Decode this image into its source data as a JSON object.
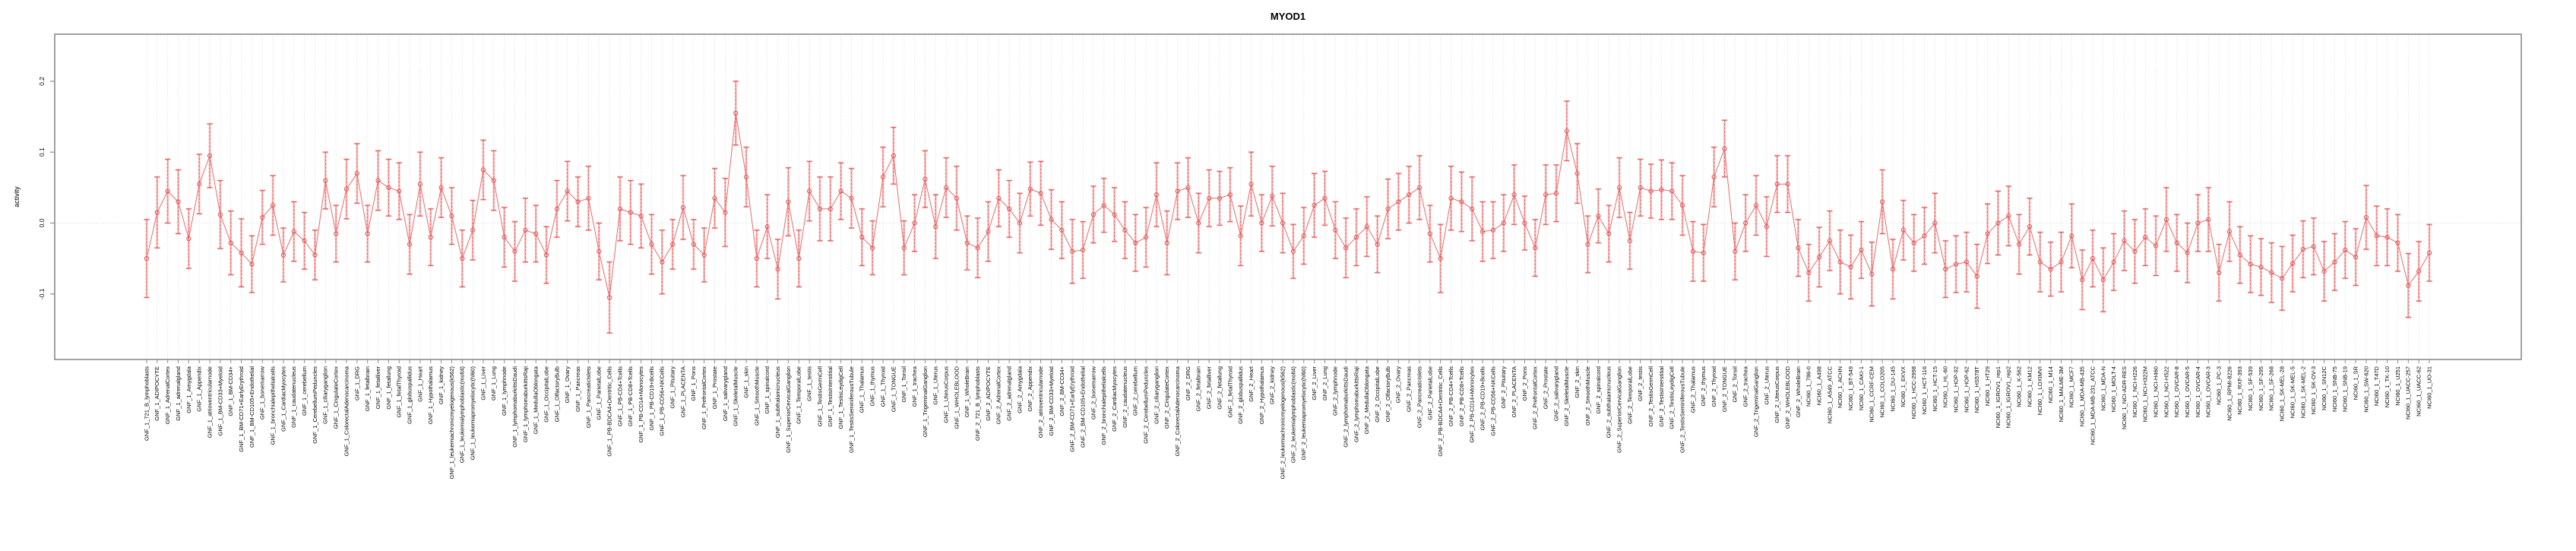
{
  "chart_data": {
    "type": "line",
    "subtype": "points-with-error-bars-connected",
    "title": "MYOD1",
    "xlabel": "",
    "ylabel": "activity",
    "y_ticks": [
      0.2,
      0.1,
      0.0,
      -0.1
    ],
    "y_tick_labels": [
      "0.2",
      "0.1",
      "0.0",
      "-0.1"
    ],
    "ylim": [
      -0.192,
      0.266
    ],
    "legend": "none",
    "grid": {
      "vertical_per_category": true,
      "horizontal_at_zero": true
    },
    "colors": {
      "line": "#ea6a6a",
      "marker": "#e05d5d",
      "errorbar_pale": "#f7b5b5",
      "errorbar_dashed": "#e05d5d",
      "grid": "#d9d9d9",
      "axis": "#8c8c8c",
      "title": "#000000",
      "background": "#ffffff"
    },
    "categories": [
      "GNF_1_721_B_lymphoblasts",
      "GNF_1_ADIPOCYTE",
      "GNF_1_AdrenalCortex",
      "GNF_1_adrenalgland",
      "GNF_1_Amygdala",
      "GNF_1_Appendix",
      "GNF_1_atrioventricularnode",
      "GNF_1_BM-CD33+Myeloid",
      "GNF_1_BM-CD34+",
      "GNF_1_BM-CD71+EarlyErythroid",
      "GNF_1_BM-CD105+Endothelial",
      "GNF_1_bonemarrow",
      "GNF_1_bronchialepithelialcells",
      "GNF_1_CardiacMyocytes",
      "GNF_1_caudatenucleus",
      "GNF_1_cerebellum",
      "GNF_1_CerebellumPeduncles",
      "GNF_1_ciliaryganglion",
      "GNF_1_CingulateCortex",
      "GNF_1_ColorectalAdenocarcinoma",
      "GNF_1_DRG",
      "GNF_1_fetalbrain",
      "GNF_1_fetalliver",
      "GNF_1_fetallung",
      "GNF_1_fetalThyroid",
      "GNF_1_globuspallidus",
      "GNF_1_Heart",
      "GNF_1_Hypothalamus",
      "GNF_1_kidney",
      "GNF_1_leukemiachronicmyelogenous(k562)",
      "GNF_1_leukemialymphoblastic(molt4)",
      "GNF_1_leukemiapromyelocytic(hl60)",
      "GNF_1_Liver",
      "GNF_1_Lung",
      "GNF_1_lymphnode",
      "GNF_1_lymphomaburkittsDaudi",
      "GNF_1_lymphomaburkittsRaji",
      "GNF_1_MedullaOblongata",
      "GNF_1_OccipitalLobe",
      "GNF_1_OlfactoryBulb",
      "GNF_1_Ovary",
      "GNF_1_Pancreas",
      "GNF_1_PancreaticIslets",
      "GNF_1_ParietalLobe",
      "GNF_1_PB-BDCA4+Dentritic_Cells",
      "GNF_1_PB-CD4+Tcells",
      "GNF_1_PB-CD8+Tcells",
      "GNF_1_PB-CD14+Monocytes",
      "GNF_1_PB-CD19+Bcells",
      "GNF_1_PB-CD56+NKCells",
      "GNF_1_Pituitary",
      "GNF_1_PLACENTA",
      "GNF_1_Pons",
      "GNF_1_PrefrontalCortex",
      "GNF_1_Prostate",
      "GNF_1_salivarygland",
      "GNF_1_SkeletalMuscle",
      "GNF_1_skin",
      "GNF_1_SmoothMuscle",
      "GNF_1_spinalcord",
      "GNF_1_subthalamicnucleus",
      "GNF_1_SuperiorCervicalGanglion",
      "GNF_1_TemporalLobe",
      "GNF_1_testis",
      "GNF_1_TestisGermCell",
      "GNF_1_TestisInterstitial",
      "GNF_1_TestisLeydigCell",
      "GNF_1_TestisSeminiferousTubule",
      "GNF_1_Thalamus",
      "GNF_1_thymus",
      "GNF_1_Thyroid",
      "GNF_1_TONGUE",
      "GNF_1_Tonsil",
      "GNF_1_trachea",
      "GNF_1_TrigeminalGanglion",
      "GNF_1_Uterus",
      "GNF_1_UterusCorpus",
      "GNF_1_WHOLEBLOOD",
      "GNF_1_WholeBrain",
      "GNF_2_721_B_lymphoblasts",
      "GNF_2_ADIPOCYTE",
      "GNF_2_AdrenalCortex",
      "GNF_2_adrenalgland",
      "GNF_2_Amygdala",
      "GNF_2_Appendix",
      "GNF_2_atrioventricularnode",
      "GNF_2_BM-CD33+Myeloid",
      "GNF_2_BM-CD34+",
      "GNF_2_BM-CD71+EarlyErythroid",
      "GNF_2_BM-CD105+Endothelial",
      "GNF_2_bonemarrow",
      "GNF_2_bronchialepithelialcells",
      "GNF_2_CardiacMyocytes",
      "GNF_2_caudatenucleus",
      "GNF_2_cerebellum",
      "GNF_2_CerebellumPeduncles",
      "GNF_2_ciliaryganglion",
      "GNF_2_CingulateCortex",
      "GNF_2_ColorectalAdenocarcinoma",
      "GNF_2_DRG",
      "GNF_2_fetalbrain",
      "GNF_2_fetalliver",
      "GNF_2_fetallung",
      "GNF_2_fetalThyroid",
      "GNF_2_globuspallidus",
      "GNF_2_Heart",
      "GNF_2_Hypothalamus",
      "GNF_2_kidney",
      "GNF_2_leukemiachronicmyelogenous(k562)",
      "GNF_2_leukemialymphoblastic(molt4)",
      "GNF_2_leukemiapromyelocytic(hl60)",
      "GNF_2_Liver",
      "GNF_2_Lung",
      "GNF_2_lymphnode",
      "GNF_2_lymphomaburkittsDaudi",
      "GNF_2_lymphomaburkittsRaji",
      "GNF_2_MedullaOblongata",
      "GNF_2_OccipitalLobe",
      "GNF_2_OlfactoryBulb",
      "GNF_2_Ovary",
      "GNF_2_Pancreas",
      "GNF_2_PancreaticIslets",
      "GNF_2_ParietalLobe",
      "GNF_2_PB-BDCA4+Dentritic_Cells",
      "GNF_2_PB-CD4+Tcells",
      "GNF_2_PB-CD8+Tcells",
      "GNF_2_PB-CD14+Monocytes",
      "GNF_2_PB-CD19+Bcells",
      "GNF_2_PB-CD56+NKCells",
      "GNF_2_Pituitary",
      "GNF_2_PLACENTA",
      "GNF_2_Pons",
      "GNF_2_PrefrontalCortex",
      "GNF_2_Prostate",
      "GNF_2_salivarygland",
      "GNF_2_SkeletalMuscle",
      "GNF_2_skin",
      "GNF_2_SmoothMuscle",
      "GNF_2_spinalcord",
      "GNF_2_subthalamicnucleus",
      "GNF_2_SuperiorCervicalGanglion",
      "GNF_2_TemporalLobe",
      "GNF_2_testis",
      "GNF_2_TestisGermCell",
      "GNF_2_TestisInterstitial",
      "GNF_2_TestisLeydigCell",
      "GNF_2_TestisSeminiferousTubule",
      "GNF_2_Thalamus",
      "GNF_2_thymus",
      "GNF_2_Thyroid",
      "GNF_2_TONGUE",
      "GNF_2_Tonsil",
      "GNF_2_trachea",
      "GNF_2_TrigeminalGanglion",
      "GNF_2_Uterus",
      "GNF_2_UterusCorpus",
      "GNF_2_WHOLEBLOOD",
      "GNF_2_WholeBrain",
      "NCI60_1_786-0",
      "NCI60_1_A498",
      "NCI60_1_A549_ATCC",
      "NCI60_1_ACHN",
      "NCI60_1_BT-549",
      "NCI60_1_CAKI-1",
      "NCI60_1_CCRF-CEM",
      "NCI60_1_COLO205",
      "NCI60_1_DU-145",
      "NCI60_1_EKVX",
      "NCI60_1_HCC-2998",
      "NCI60_1_HCT-116",
      "NCI60_1_HCT-15",
      "NCI60_1_HL-60",
      "NCI60_1_HOP-92",
      "NCI60_1_HOP-62",
      "NCI60_1_HS578T",
      "NCI60_1_HT29",
      "NCI60_1_IGROV1_rep1",
      "NCI60_1_IGROV1_rep2",
      "NCI60_1_K-562",
      "NCI60_1_KM12",
      "NCI60_1_LOXIMVI",
      "NCI60_1_M14",
      "NCI60_1_MALME-3M",
      "NCI60_1_MCF7",
      "NCI60_1_MDA-MB-435",
      "NCI60_1_MDA-MB-231_ATCC",
      "NCI60_1_MDA-N",
      "NCI60_1_MOLT-4",
      "NCI60_1_NCI-ADR-RES",
      "NCI60_1_NCI-H226",
      "NCI60_1_NCI-H322M",
      "NCI60_1_NCI-H460",
      "NCI60_1_NCI-H522",
      "NCI60_1_OVCAR-8",
      "NCI60_1_OVCAR-5",
      "NCI60_1_OVCAR-4",
      "NCI60_1_OVCAR-3",
      "NCI60_1_PC-3",
      "NCI60_1_RPMI-8226",
      "NCI60_1_RXF-393",
      "NCI60_1_SF-539",
      "NCI60_1_SF-295",
      "NCI60_1_SF-268",
      "NCI60_1_SK-MEL-28",
      "NCI60_1_SK-MEL-5",
      "NCI60_1_SK-MEL-2",
      "NCI60_1_SK-OV-3",
      "NCI60_1_SN12C",
      "NCI60_1_SNB-75",
      "NCI60_1_SNB-19",
      "NCI60_1_SR",
      "NCI60_1_SW-620",
      "NCI60_1_T47D",
      "NCI60_1_TK-10",
      "NCI60_1_U251",
      "NCI60_1_UACC-257",
      "NCI60_1_UACC-62",
      "NCI60_1_UO-31"
    ],
    "values": [
      -0.05,
      0.015,
      0.045,
      0.03,
      -0.022,
      0.055,
      0.095,
      0.012,
      -0.028,
      -0.042,
      -0.058,
      0.008,
      0.025,
      -0.045,
      -0.012,
      -0.025,
      -0.045,
      0.06,
      -0.015,
      0.048,
      0.07,
      -0.015,
      0.06,
      0.05,
      0.045,
      -0.03,
      0.055,
      -0.02,
      0.05,
      0.01,
      -0.05,
      -0.01,
      0.075,
      0.06,
      -0.02,
      -0.04,
      -0.01,
      -0.015,
      -0.045,
      0.02,
      0.045,
      0.03,
      0.035,
      -0.04,
      -0.105,
      0.02,
      0.015,
      0.01,
      -0.03,
      -0.055,
      -0.03,
      0.022,
      -0.03,
      -0.045,
      0.035,
      0.015,
      0.155,
      0.065,
      -0.05,
      -0.005,
      -0.065,
      0.03,
      -0.05,
      0.045,
      0.02,
      0.02,
      0.045,
      0.035,
      -0.02,
      -0.035,
      0.065,
      0.095,
      -0.035,
      0.0,
      0.062,
      -0.005,
      0.05,
      0.035,
      -0.028,
      -0.035,
      -0.012,
      0.035,
      0.02,
      0.0,
      0.048,
      0.042,
      0.005,
      -0.01,
      -0.04,
      -0.038,
      0.012,
      0.025,
      0.012,
      -0.01,
      -0.028,
      -0.02,
      0.04,
      -0.028,
      0.045,
      0.05,
      0.0,
      0.035,
      0.035,
      0.04,
      -0.018,
      0.055,
      0.0,
      0.038,
      0.0,
      -0.04,
      -0.018,
      0.025,
      0.035,
      -0.01,
      -0.035,
      -0.02,
      -0.005,
      -0.03,
      0.02,
      0.03,
      0.04,
      0.05,
      -0.015,
      -0.05,
      0.035,
      0.03,
      0.02,
      -0.012,
      -0.01,
      0.0,
      0.04,
      0.0,
      -0.035,
      0.04,
      0.042,
      0.13,
      0.07,
      -0.03,
      0.01,
      -0.015,
      0.05,
      -0.025,
      0.05,
      0.045,
      0.047,
      0.045,
      0.025,
      -0.04,
      -0.042,
      0.065,
      0.105,
      -0.04,
      0.0,
      0.025,
      -0.005,
      0.055,
      0.055,
      -0.035,
      -0.07,
      -0.048,
      -0.025,
      -0.055,
      -0.062,
      -0.038,
      -0.072,
      0.03,
      -0.065,
      -0.01,
      -0.028,
      -0.018,
      0.0,
      -0.065,
      -0.058,
      -0.055,
      -0.075,
      -0.015,
      0.0,
      0.01,
      -0.03,
      -0.005,
      -0.055,
      -0.065,
      -0.055,
      -0.018,
      -0.08,
      -0.05,
      -0.08,
      -0.055,
      -0.025,
      -0.04,
      -0.02,
      -0.032,
      0.005,
      -0.028,
      -0.042,
      0.0,
      0.005,
      -0.07,
      -0.012,
      -0.045,
      -0.058,
      -0.062,
      -0.07,
      -0.078,
      -0.057,
      -0.037,
      -0.033,
      -0.068,
      -0.055,
      -0.038,
      -0.048,
      0.008,
      -0.018,
      -0.02,
      -0.028,
      -0.088,
      -0.068,
      -0.042
    ],
    "errors": [
      0.055,
      0.05,
      0.045,
      0.045,
      0.042,
      0.042,
      0.045,
      0.048,
      0.045,
      0.048,
      0.04,
      0.038,
      0.042,
      0.038,
      0.042,
      0.04,
      0.035,
      0.04,
      0.04,
      0.042,
      0.042,
      0.04,
      0.042,
      0.04,
      0.04,
      0.042,
      0.045,
      0.04,
      0.042,
      0.04,
      0.04,
      0.042,
      0.042,
      0.042,
      0.042,
      0.042,
      0.045,
      0.04,
      0.04,
      0.04,
      0.042,
      0.035,
      0.045,
      0.04,
      0.05,
      0.045,
      0.045,
      0.045,
      0.042,
      0.045,
      0.035,
      0.045,
      0.035,
      0.038,
      0.042,
      0.048,
      0.045,
      0.042,
      0.04,
      0.045,
      0.042,
      0.048,
      0.04,
      0.042,
      0.045,
      0.045,
      0.04,
      0.042,
      0.04,
      0.038,
      0.042,
      0.04,
      0.038,
      0.04,
      0.04,
      0.045,
      0.042,
      0.045,
      0.038,
      0.042,
      0.042,
      0.04,
      0.04,
      0.042,
      0.038,
      0.045,
      0.042,
      0.04,
      0.045,
      0.04,
      0.04,
      0.038,
      0.038,
      0.04,
      0.04,
      0.042,
      0.045,
      0.045,
      0.04,
      0.042,
      0.042,
      0.04,
      0.038,
      0.038,
      0.042,
      0.045,
      0.04,
      0.042,
      0.042,
      0.038,
      0.04,
      0.045,
      0.038,
      0.04,
      0.042,
      0.04,
      0.042,
      0.04,
      0.042,
      0.04,
      0.04,
      0.045,
      0.04,
      0.048,
      0.045,
      0.042,
      0.045,
      0.042,
      0.04,
      0.04,
      0.042,
      0.038,
      0.04,
      0.042,
      0.04,
      0.042,
      0.042,
      0.04,
      0.038,
      0.04,
      0.042,
      0.04,
      0.04,
      0.038,
      0.042,
      0.04,
      0.042,
      0.042,
      0.04,
      0.042,
      0.04,
      0.04,
      0.04,
      0.042,
      0.042,
      0.04,
      0.04,
      0.04,
      0.04,
      0.042,
      0.042,
      0.045,
      0.045,
      0.04,
      0.045,
      0.045,
      0.042,
      0.042,
      0.04,
      0.04,
      0.042,
      0.04,
      0.04,
      0.042,
      0.045,
      0.042,
      0.045,
      0.042,
      0.042,
      0.04,
      0.042,
      0.038,
      0.042,
      0.045,
      0.042,
      0.04,
      0.045,
      0.04,
      0.042,
      0.045,
      0.04,
      0.042,
      0.045,
      0.04,
      0.042,
      0.04,
      0.045,
      0.04,
      0.042,
      0.04,
      0.04,
      0.04,
      0.042,
      0.045,
      0.04,
      0.04,
      0.04,
      0.042,
      0.04,
      0.04,
      0.04,
      0.045,
      0.042,
      0.04,
      0.04,
      0.045,
      0.042,
      0.04
    ]
  }
}
